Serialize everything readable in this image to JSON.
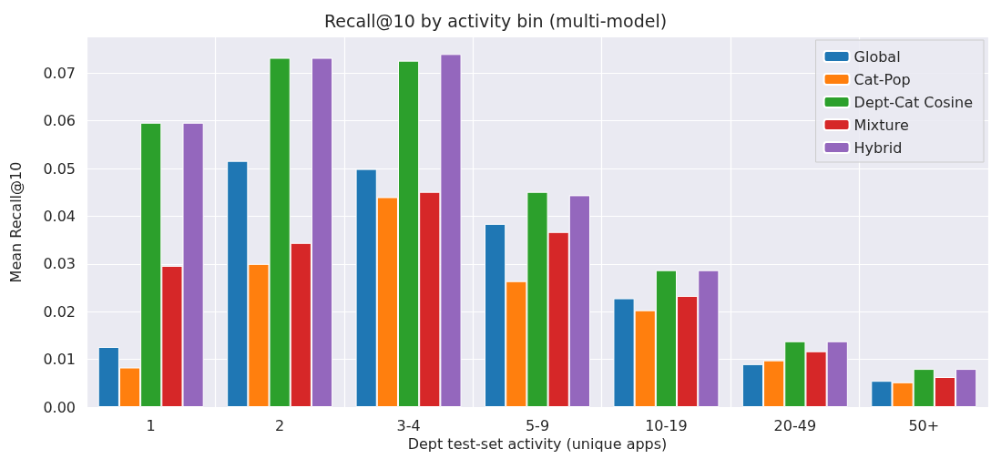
{
  "chart_data": {
    "type": "bar",
    "title": "Recall@10 by activity bin (multi-model)",
    "xlabel": "Dept test-set activity (unique apps)",
    "ylabel": "Mean Recall@10",
    "categories": [
      "1",
      "2",
      "3-4",
      "5-9",
      "10-19",
      "20-49",
      "50+"
    ],
    "series": [
      {
        "name": "Global",
        "color": "#1f77b4",
        "values": [
          0.0126,
          0.0516,
          0.0499,
          0.0384,
          0.0228,
          0.009,
          0.0055
        ]
      },
      {
        "name": "Cat-Pop",
        "color": "#ff7f0e",
        "values": [
          0.0083,
          0.03,
          0.044,
          0.0264,
          0.0203,
          0.0098,
          0.0052
        ]
      },
      {
        "name": "Dept-Cat Cosine",
        "color": "#2ca02c",
        "values": [
          0.0596,
          0.0732,
          0.0726,
          0.0451,
          0.0287,
          0.0138,
          0.008
        ]
      },
      {
        "name": "Mixture",
        "color": "#d62728",
        "values": [
          0.0296,
          0.0344,
          0.0451,
          0.0367,
          0.0233,
          0.0117,
          0.0063
        ]
      },
      {
        "name": "Hybrid",
        "color": "#9467bd",
        "values": [
          0.0596,
          0.0732,
          0.074,
          0.0444,
          0.0287,
          0.0138,
          0.008
        ]
      }
    ],
    "ylim": [
      0,
      0.0775
    ],
    "yticks": [
      {
        "value": 0,
        "label": "0.00"
      },
      {
        "value": 0.01,
        "label": "0.01"
      },
      {
        "value": 0.02,
        "label": "0.02"
      },
      {
        "value": 0.03,
        "label": "0.03"
      },
      {
        "value": 0.04,
        "label": "0.04"
      },
      {
        "value": 0.05,
        "label": "0.05"
      },
      {
        "value": 0.06,
        "label": "0.06"
      },
      {
        "value": 0.07,
        "label": "0.07"
      }
    ],
    "grid": true,
    "legend": "top right"
  }
}
